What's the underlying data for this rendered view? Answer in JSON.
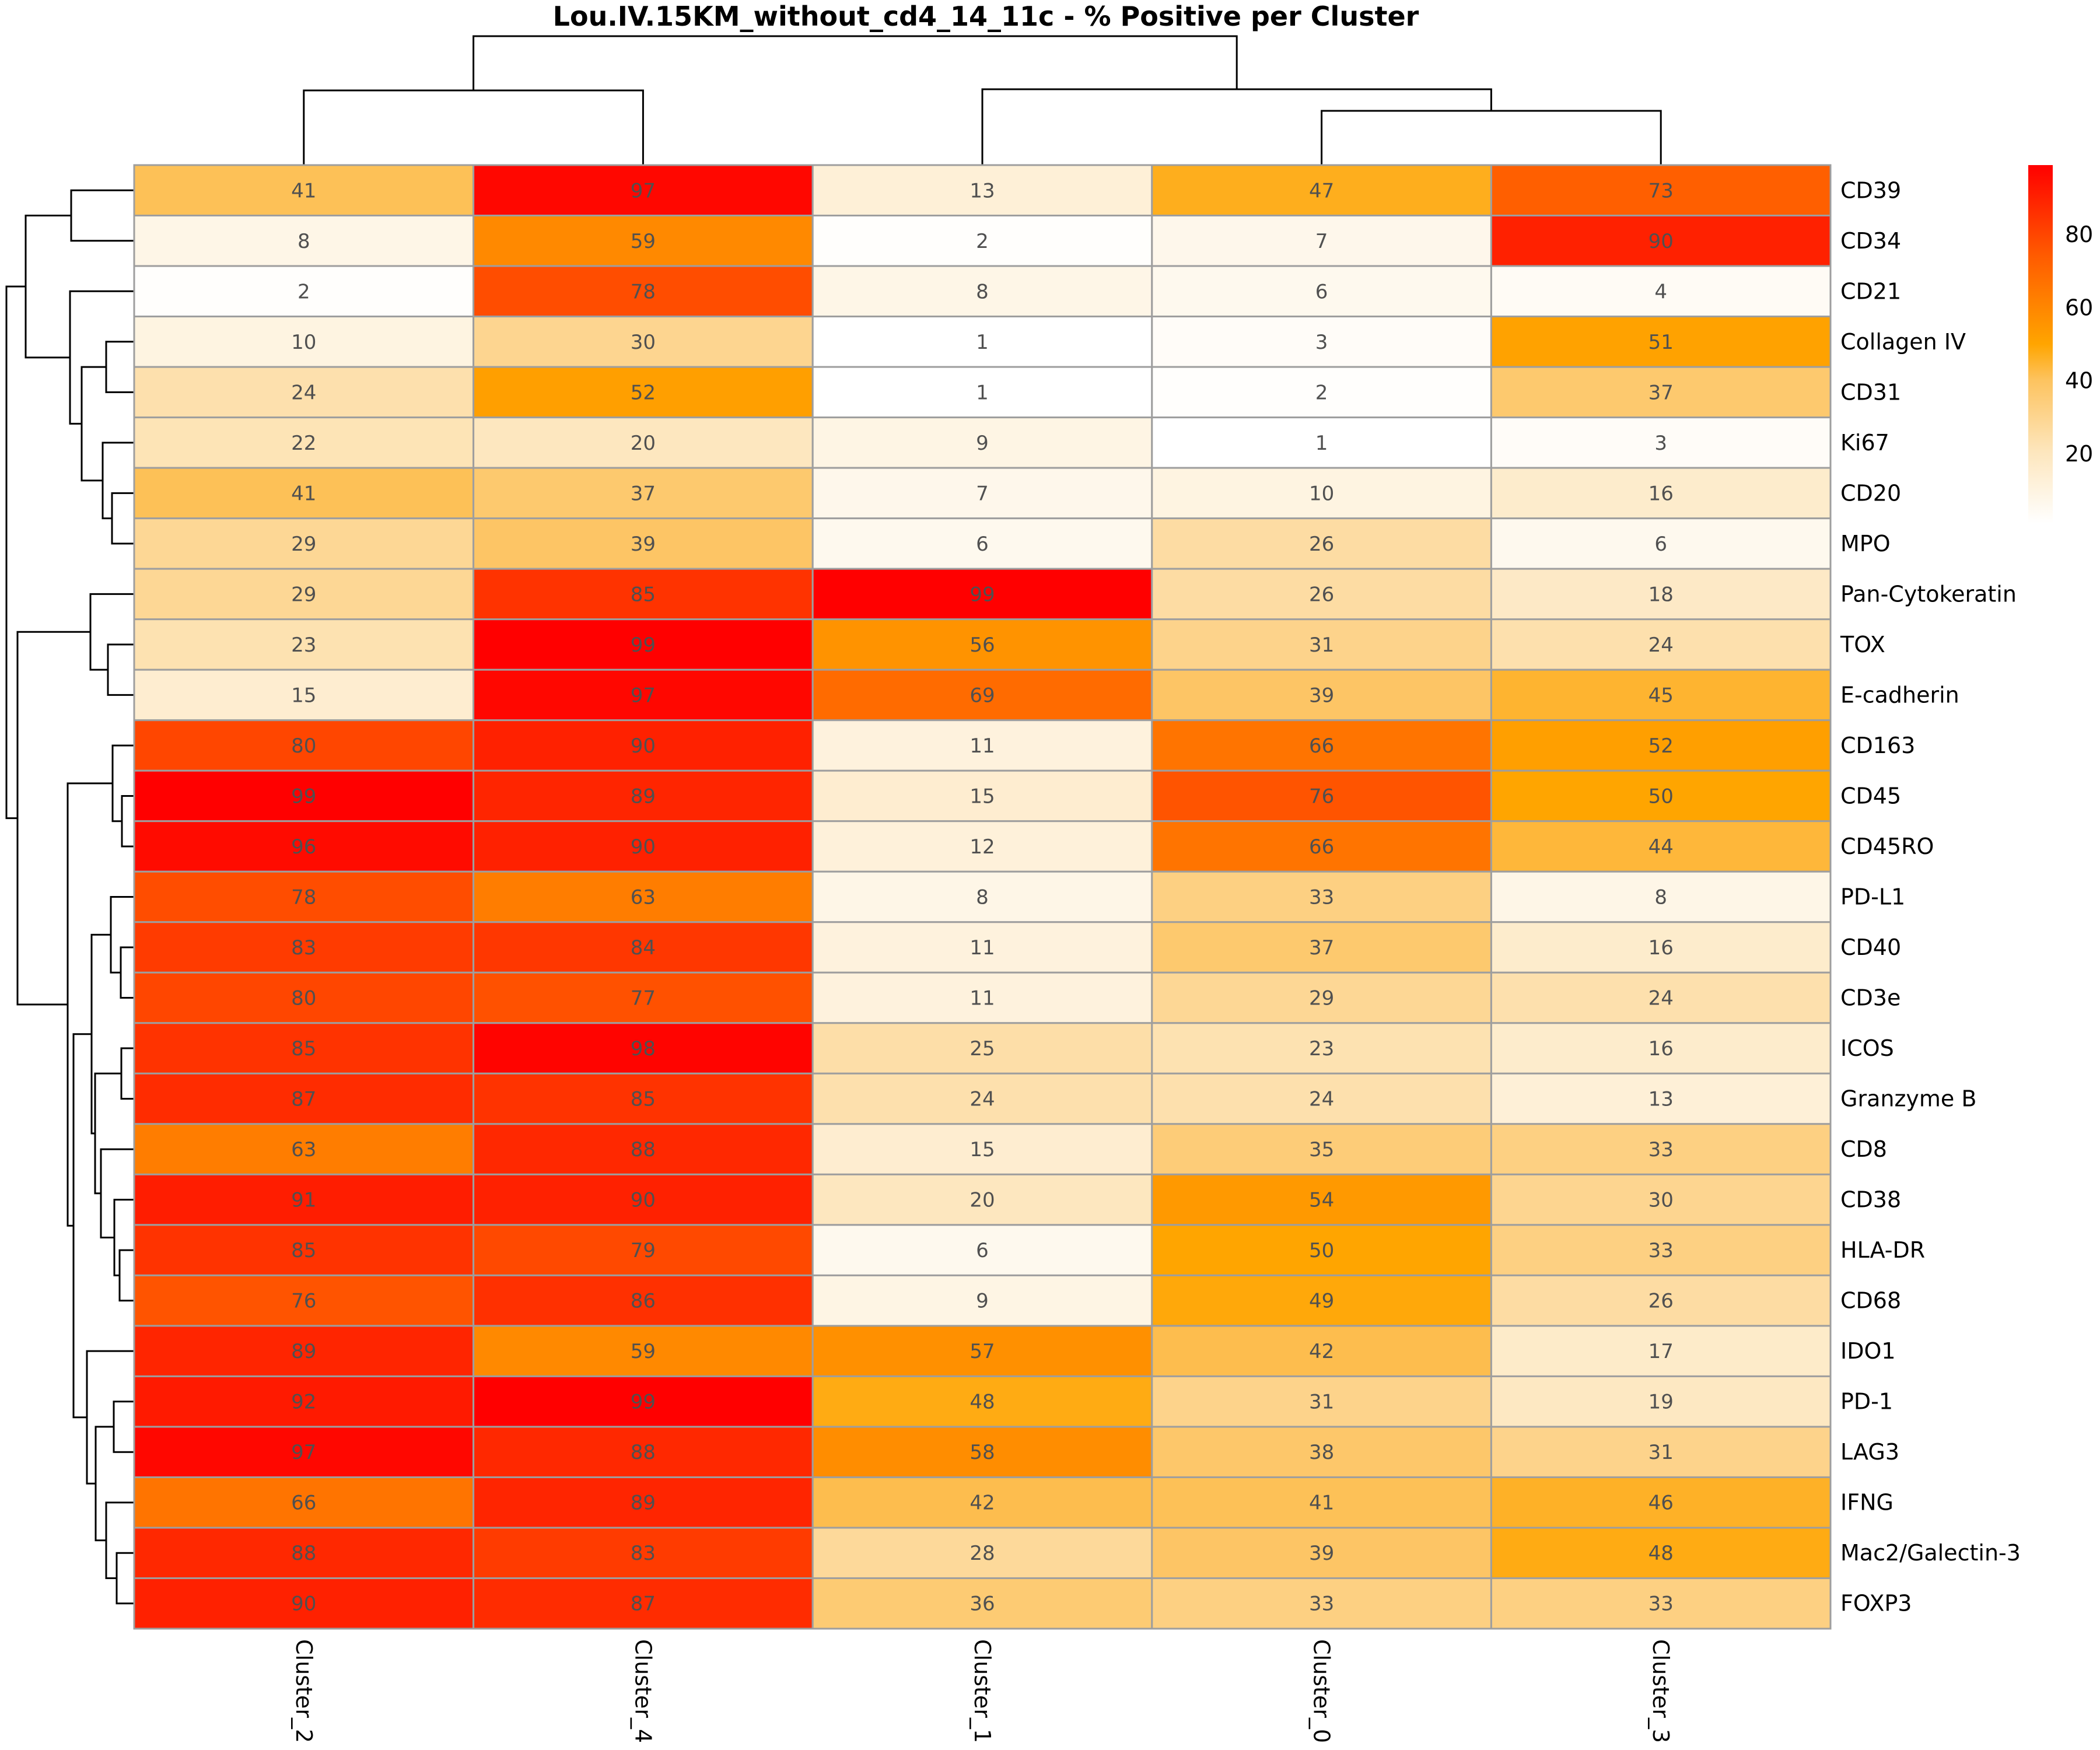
{
  "chart_data": {
    "type": "heatmap",
    "title": "Lou.IV.15KM_without_cd4_14_11c - % Positive per Cluster",
    "columns": [
      "Cluster_2",
      "Cluster_4",
      "Cluster_1",
      "Cluster_0",
      "Cluster_3"
    ],
    "rows": [
      "CD39",
      "CD34",
      "CD21",
      "Collagen IV",
      "CD31",
      "Ki67",
      "CD20",
      "MPO",
      "Pan-Cytokeratin",
      "TOX",
      "E-cadherin",
      "CD163",
      "CD45",
      "CD45RO",
      "PD-L1",
      "CD40",
      "CD3e",
      "ICOS",
      "Granzyme B",
      "CD8",
      "CD38",
      "HLA-DR",
      "CD68",
      "IDO1",
      "PD-1",
      "LAG3",
      "IFNG",
      "Mac2/Galectin-3",
      "FOXP3"
    ],
    "values": [
      [
        41,
        97,
        13,
        47,
        73
      ],
      [
        8,
        59,
        2,
        7,
        90
      ],
      [
        2,
        78,
        8,
        6,
        4
      ],
      [
        10,
        30,
        1,
        3,
        51
      ],
      [
        24,
        52,
        1,
        2,
        37
      ],
      [
        22,
        20,
        9,
        1,
        3
      ],
      [
        41,
        37,
        7,
        10,
        16
      ],
      [
        29,
        39,
        6,
        26,
        6
      ],
      [
        29,
        85,
        99,
        26,
        18
      ],
      [
        23,
        99,
        56,
        31,
        24
      ],
      [
        15,
        97,
        69,
        39,
        45
      ],
      [
        80,
        90,
        11,
        66,
        52
      ],
      [
        99,
        89,
        15,
        76,
        50
      ],
      [
        96,
        90,
        12,
        66,
        44
      ],
      [
        78,
        63,
        8,
        33,
        8
      ],
      [
        83,
        84,
        11,
        37,
        16
      ],
      [
        80,
        77,
        11,
        29,
        24
      ],
      [
        85,
        98,
        25,
        23,
        16
      ],
      [
        87,
        85,
        24,
        24,
        13
      ],
      [
        63,
        88,
        15,
        35,
        33
      ],
      [
        91,
        90,
        20,
        54,
        30
      ],
      [
        85,
        79,
        6,
        50,
        33
      ],
      [
        76,
        86,
        9,
        49,
        26
      ],
      [
        89,
        59,
        57,
        42,
        17
      ],
      [
        92,
        99,
        48,
        31,
        19
      ],
      [
        97,
        88,
        58,
        38,
        31
      ],
      [
        66,
        89,
        42,
        41,
        46
      ],
      [
        88,
        83,
        28,
        39,
        48
      ],
      [
        90,
        87,
        36,
        33,
        33
      ]
    ],
    "colorbar": {
      "ticks": [
        "80",
        "60",
        "40",
        "20"
      ],
      "tick_values": [
        80,
        60,
        40,
        20
      ],
      "range": [
        1,
        99
      ],
      "colors": [
        "#ffffff",
        "#fed98e",
        "#ffa500",
        "#ff4500",
        "#ff0000"
      ]
    },
    "column_dendrogram": "((Cluster_2,Cluster_4),(Cluster_1,(Cluster_0,Cluster_3)))",
    "row_dendrogram": "clustered"
  }
}
